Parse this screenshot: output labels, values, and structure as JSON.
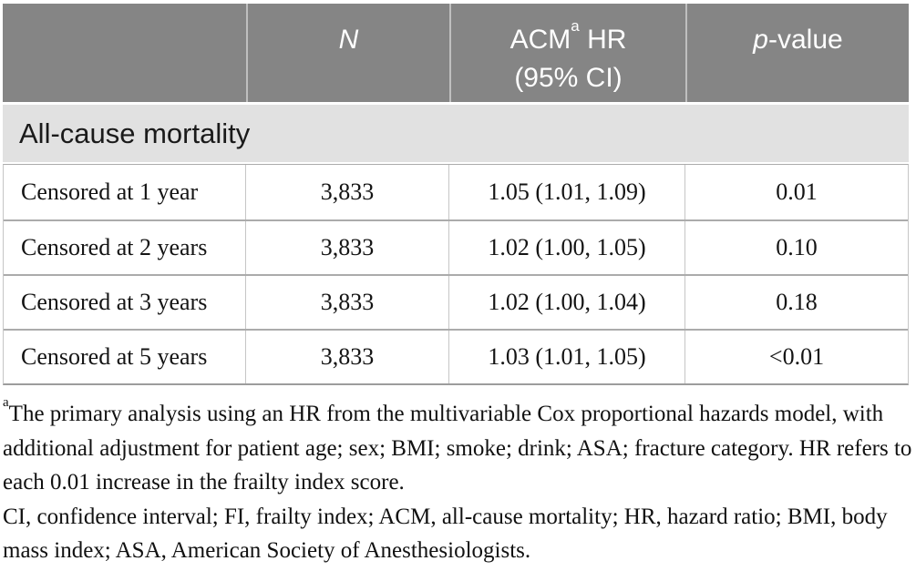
{
  "colors": {
    "header_bg": "#858585",
    "header_text": "#ffffff",
    "section_bg": "#e1e1e1",
    "body_text": "#141414",
    "grid_line": "#ababab",
    "grid_line_light": "#c6c6c6"
  },
  "table": {
    "header": {
      "col_empty": "",
      "n_label": "N",
      "acm_prefix": "ACM",
      "acm_sup": "a",
      "acm_suffix": " HR",
      "acm_line2": "(95% CI)",
      "p_italic": "p",
      "p_rest": "-value"
    },
    "section_label": "All-cause mortality",
    "rows": [
      {
        "label": "Censored at 1 year",
        "n": "3,833",
        "hr": "1.05 (1.01, 1.09)",
        "p": "0.01"
      },
      {
        "label": "Censored at 2 years",
        "n": "3,833",
        "hr": "1.02 (1.00, 1.05)",
        "p": "0.10"
      },
      {
        "label": "Censored at 3 years",
        "n": "3,833",
        "hr": "1.02 (1.00, 1.04)",
        "p": "0.18"
      },
      {
        "label": "Censored at 5 years",
        "n": "3,833",
        "hr": "1.03 (1.01, 1.05)",
        "p": "<0.01"
      }
    ]
  },
  "footnotes": {
    "note1_sup": "a",
    "note1_text": "The primary analysis using an HR from the multivariable Cox proportional hazards model, with additional adjustment for patient age; sex; BMI; smoke; drink; ASA; fracture category. HR refers to each 0.01 increase in the frailty index score.",
    "note2_text": "CI, confidence interval; FI, frailty index; ACM, all-cause mortality; HR, hazard ratio; BMI, body mass index; ASA, American Society of Anesthesiologists."
  }
}
